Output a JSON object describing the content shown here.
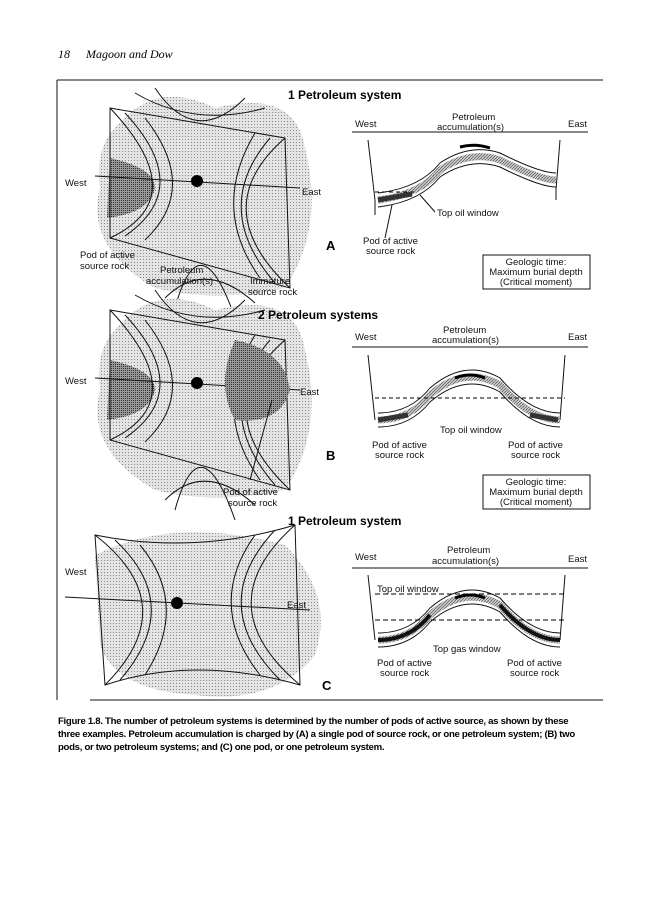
{
  "header": {
    "page_number": "18",
    "running_title": "Magoon and Dow"
  },
  "panels": [
    {
      "letter": "A",
      "title": "1 Petroleum system",
      "map_labels": {
        "west": "West",
        "east": "East",
        "pod": [
          "Pod of active",
          "source rock"
        ],
        "accum": [
          "Petroleum",
          "accumulation(s)"
        ],
        "immature": [
          "Immature",
          "source rock"
        ]
      },
      "section": {
        "west": "West",
        "east": "East",
        "accum": [
          "Petroleum",
          "accumulation(s)"
        ],
        "oil_window": "Top oil window",
        "pod": [
          "Pod of active",
          "source rock"
        ]
      },
      "time_box": [
        "Geologic time:",
        "Maximum burial depth",
        "(Critical moment)"
      ]
    },
    {
      "letter": "B",
      "title": "2 Petroleum systems",
      "map_labels": {
        "west": "West",
        "east": "East",
        "pod": [
          "Pod of active",
          "source rock"
        ]
      },
      "section": {
        "west": "West",
        "east": "East",
        "accum": [
          "Petroleum",
          "accumulation(s)"
        ],
        "oil_window": "Top oil window",
        "pod_left": [
          "Pod of active",
          "source rock"
        ],
        "pod_right": [
          "Pod of active",
          "source rock"
        ]
      },
      "time_box": [
        "Geologic time:",
        "Maximum burial depth",
        "(Critical moment)"
      ]
    },
    {
      "letter": "C",
      "title": "1 Petroleum system",
      "map_labels": {
        "west": "West",
        "east": "East"
      },
      "section": {
        "west": "West",
        "east": "East",
        "accum": [
          "Petroleum",
          "accumulation(s)"
        ],
        "oil_window": "Top oil window",
        "gas_window": "Top gas window",
        "pod_left": [
          "Pod of active",
          "source rock"
        ],
        "pod_right": [
          "Pod of active",
          "source rock"
        ]
      }
    }
  ],
  "caption": [
    "Figure 1.8. The number of petroleum systems is determined by the number of pods of active source, as shown by these",
    "three examples. Petroleum accumulation is charged by (A) a single pod of source rock, or one petroleum system; (B) two",
    "pods, or two petroleum systems; and (C) one pod, or one petroleum system."
  ]
}
